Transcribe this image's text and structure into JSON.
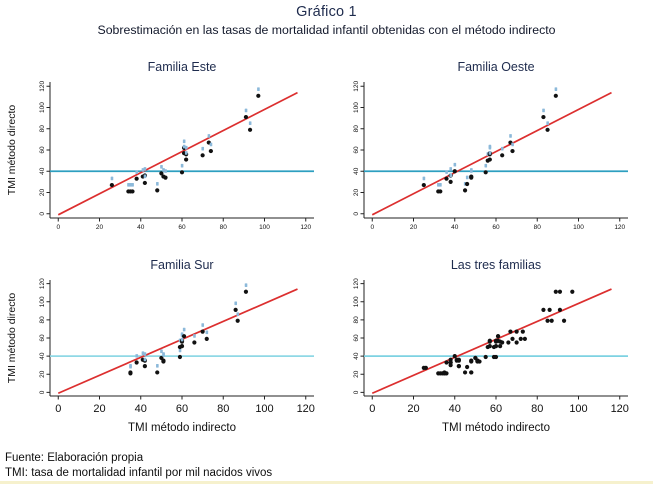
{
  "page": {
    "title": "Gráfico 1",
    "subtitle": "Sobrestimación en las tasas de mortalidad infantil obtenidas con el método indirecto",
    "footer_lines": [
      "Fuente: Elaboración propia",
      "TMI: tasa de mortalidad infantil por mil nacidos vivos"
    ],
    "title_color": "#1e2b4d",
    "bottom_strip_color": "#f6f1cd"
  },
  "chart_data": [
    {
      "type": "scatter",
      "title": "Familia Este",
      "xlabel": "",
      "ylabel": "TMI método directo",
      "xlim": [
        -4,
        124
      ],
      "ylim": [
        -4,
        124
      ],
      "xticks": [
        0,
        20,
        40,
        60,
        80,
        100,
        120
      ],
      "yticks": [
        0,
        20,
        40,
        60,
        80,
        100,
        120
      ],
      "grid": false,
      "identity_line": {
        "x1": 0,
        "y1": -1,
        "x2": 116,
        "y2": 114,
        "color": "#dc2f2f"
      },
      "hline": {
        "y": 40,
        "color": "#2d9fc0"
      },
      "point_color": "#111111",
      "point_label_marks": {
        "visible": true,
        "color": "#8cb9da"
      },
      "points": [
        [
          26,
          27
        ],
        [
          34,
          21
        ],
        [
          35,
          21
        ],
        [
          36,
          21
        ],
        [
          38,
          33
        ],
        [
          41,
          35
        ],
        [
          42,
          36
        ],
        [
          42,
          29
        ],
        [
          48,
          22
        ],
        [
          50,
          38
        ],
        [
          51,
          35
        ],
        [
          52,
          34
        ],
        [
          60,
          39
        ],
        [
          61,
          62
        ],
        [
          61,
          57
        ],
        [
          62,
          56
        ],
        [
          62,
          51
        ],
        [
          70,
          55
        ],
        [
          73,
          67
        ],
        [
          74,
          59
        ],
        [
          91,
          91
        ],
        [
          93,
          79
        ],
        [
          97,
          111
        ]
      ]
    },
    {
      "type": "scatter",
      "title": "Familia Oeste",
      "xlabel": "",
      "ylabel": "",
      "xlim": [
        -4,
        124
      ],
      "ylim": [
        -4,
        124
      ],
      "xticks": [
        0,
        20,
        40,
        60,
        80,
        100,
        120
      ],
      "yticks": [
        0,
        20,
        40,
        60,
        80,
        100,
        120
      ],
      "grid": false,
      "identity_line": {
        "x1": 0,
        "y1": -1,
        "x2": 116,
        "y2": 114,
        "color": "#dc2f2f"
      },
      "hline": {
        "y": 40,
        "color": "#2d9fc0"
      },
      "point_color": "#111111",
      "point_label_marks": {
        "visible": true,
        "color": "#8cb9da"
      },
      "points": [
        [
          25,
          27
        ],
        [
          32,
          21
        ],
        [
          33,
          21
        ],
        [
          36,
          33
        ],
        [
          38,
          36
        ],
        [
          38,
          30
        ],
        [
          40,
          40
        ],
        [
          45,
          22
        ],
        [
          46,
          28
        ],
        [
          48,
          35
        ],
        [
          48,
          34
        ],
        [
          55,
          39
        ],
        [
          56,
          50
        ],
        [
          57,
          57
        ],
        [
          57,
          56
        ],
        [
          57,
          51
        ],
        [
          63,
          55
        ],
        [
          67,
          67
        ],
        [
          68,
          59
        ],
        [
          83,
          91
        ],
        [
          85,
          79
        ],
        [
          89,
          111
        ]
      ]
    },
    {
      "type": "scatter",
      "title": "Familia Sur",
      "xlabel": "TMI método indirecto",
      "ylabel": "TMI método directo",
      "xlim": [
        -4,
        124
      ],
      "ylim": [
        -4,
        124
      ],
      "xticks": [
        0,
        20,
        40,
        60,
        80,
        100,
        120
      ],
      "yticks": [
        0,
        20,
        40,
        60,
        80,
        100,
        120
      ],
      "grid": false,
      "identity_line": {
        "x1": 0,
        "y1": -1,
        "x2": 116,
        "y2": 114,
        "color": "#dc2f2f"
      },
      "hline": {
        "y": 40,
        "color": "#8fd8e5"
      },
      "point_color": "#111111",
      "point_label_marks": {
        "visible": true,
        "color": "#8cb9da"
      },
      "points": [
        [
          35,
          21
        ],
        [
          35,
          22
        ],
        [
          38,
          33
        ],
        [
          41,
          36
        ],
        [
          42,
          35
        ],
        [
          42,
          29
        ],
        [
          48,
          22
        ],
        [
          50,
          38
        ],
        [
          51,
          35
        ],
        [
          51,
          34
        ],
        [
          59,
          39
        ],
        [
          59,
          50
        ],
        [
          60,
          57
        ],
        [
          60,
          56
        ],
        [
          60,
          51
        ],
        [
          61,
          62
        ],
        [
          66,
          55
        ],
        [
          70,
          67
        ],
        [
          72,
          59
        ],
        [
          86,
          91
        ],
        [
          87,
          79
        ],
        [
          91,
          111
        ]
      ]
    },
    {
      "type": "scatter",
      "title": "Las tres familias",
      "xlabel": "TMI método indirecto",
      "ylabel": "",
      "xlim": [
        -4,
        124
      ],
      "ylim": [
        -4,
        124
      ],
      "xticks": [
        0,
        20,
        40,
        60,
        80,
        100,
        120
      ],
      "yticks": [
        0,
        20,
        40,
        60,
        80,
        100,
        120
      ],
      "grid": false,
      "identity_line": {
        "x1": 0,
        "y1": -1,
        "x2": 116,
        "y2": 114,
        "color": "#dc2f2f"
      },
      "hline": {
        "y": 40,
        "color": "#7dd2e2"
      },
      "point_color": "#111111",
      "point_label_marks": {
        "visible": false,
        "color": "#8cb9da"
      },
      "points": [
        [
          26,
          27
        ],
        [
          34,
          21
        ],
        [
          35,
          21
        ],
        [
          36,
          21
        ],
        [
          38,
          33
        ],
        [
          41,
          35
        ],
        [
          42,
          36
        ],
        [
          42,
          29
        ],
        [
          48,
          22
        ],
        [
          50,
          38
        ],
        [
          51,
          35
        ],
        [
          52,
          34
        ],
        [
          60,
          39
        ],
        [
          61,
          62
        ],
        [
          61,
          57
        ],
        [
          62,
          56
        ],
        [
          62,
          51
        ],
        [
          70,
          55
        ],
        [
          73,
          67
        ],
        [
          74,
          59
        ],
        [
          91,
          91
        ],
        [
          93,
          79
        ],
        [
          97,
          111
        ],
        [
          25,
          27
        ],
        [
          32,
          21
        ],
        [
          33,
          21
        ],
        [
          36,
          33
        ],
        [
          38,
          36
        ],
        [
          38,
          30
        ],
        [
          40,
          40
        ],
        [
          45,
          22
        ],
        [
          46,
          28
        ],
        [
          48,
          35
        ],
        [
          48,
          34
        ],
        [
          55,
          39
        ],
        [
          56,
          50
        ],
        [
          57,
          57
        ],
        [
          57,
          56
        ],
        [
          57,
          51
        ],
        [
          63,
          55
        ],
        [
          67,
          67
        ],
        [
          68,
          59
        ],
        [
          83,
          91
        ],
        [
          85,
          79
        ],
        [
          89,
          111
        ],
        [
          35,
          21
        ],
        [
          35,
          22
        ],
        [
          38,
          33
        ],
        [
          41,
          36
        ],
        [
          42,
          35
        ],
        [
          42,
          29
        ],
        [
          48,
          22
        ],
        [
          50,
          38
        ],
        [
          51,
          35
        ],
        [
          51,
          34
        ],
        [
          59,
          39
        ],
        [
          59,
          50
        ],
        [
          60,
          57
        ],
        [
          60,
          56
        ],
        [
          60,
          51
        ],
        [
          61,
          62
        ],
        [
          66,
          55
        ],
        [
          70,
          67
        ],
        [
          72,
          59
        ],
        [
          86,
          91
        ],
        [
          87,
          79
        ],
        [
          91,
          111
        ]
      ]
    }
  ]
}
